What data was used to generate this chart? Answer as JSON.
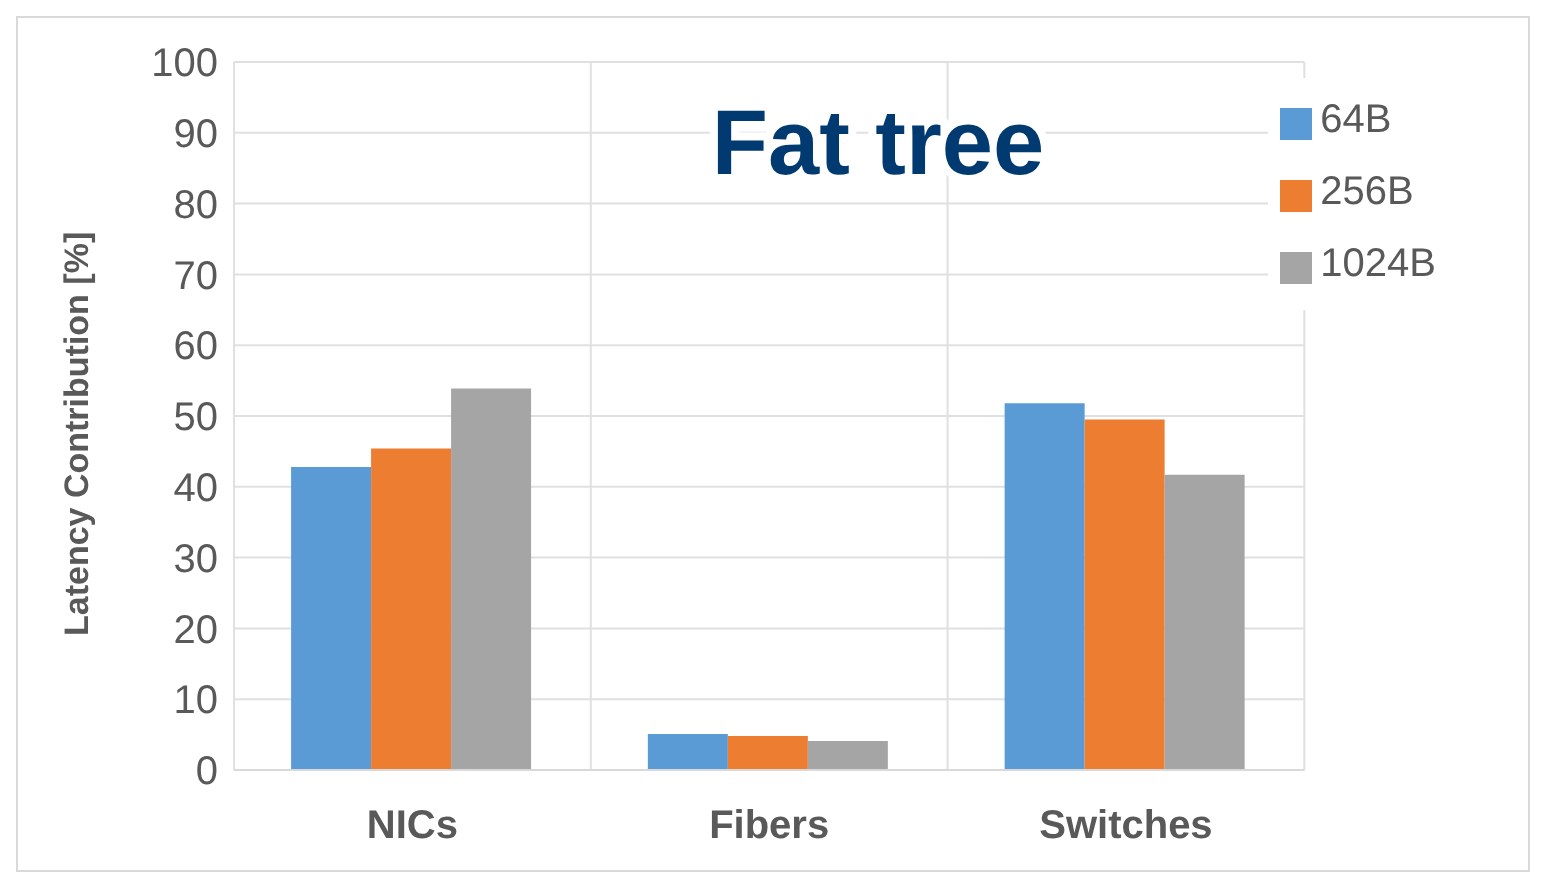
{
  "chart_data": {
    "type": "bar",
    "title": "Fat tree",
    "ylabel": "Latency Contribution [%]",
    "categories": [
      "NICs",
      "Fibers",
      "Switches"
    ],
    "series": [
      {
        "name": "64B",
        "color": "#5b9bd5",
        "values": [
          42.8,
          5.1,
          51.8
        ]
      },
      {
        "name": "256B",
        "color": "#ed7d31",
        "values": [
          45.4,
          4.8,
          49.5
        ]
      },
      {
        "name": "1024B",
        "color": "#a5a5a5",
        "values": [
          53.9,
          4.1,
          41.7
        ]
      }
    ],
    "ylim": [
      0,
      100
    ],
    "yticks": [
      0,
      10,
      20,
      30,
      40,
      50,
      60,
      70,
      80,
      90,
      100
    ],
    "grid": true,
    "legend": "top right"
  }
}
